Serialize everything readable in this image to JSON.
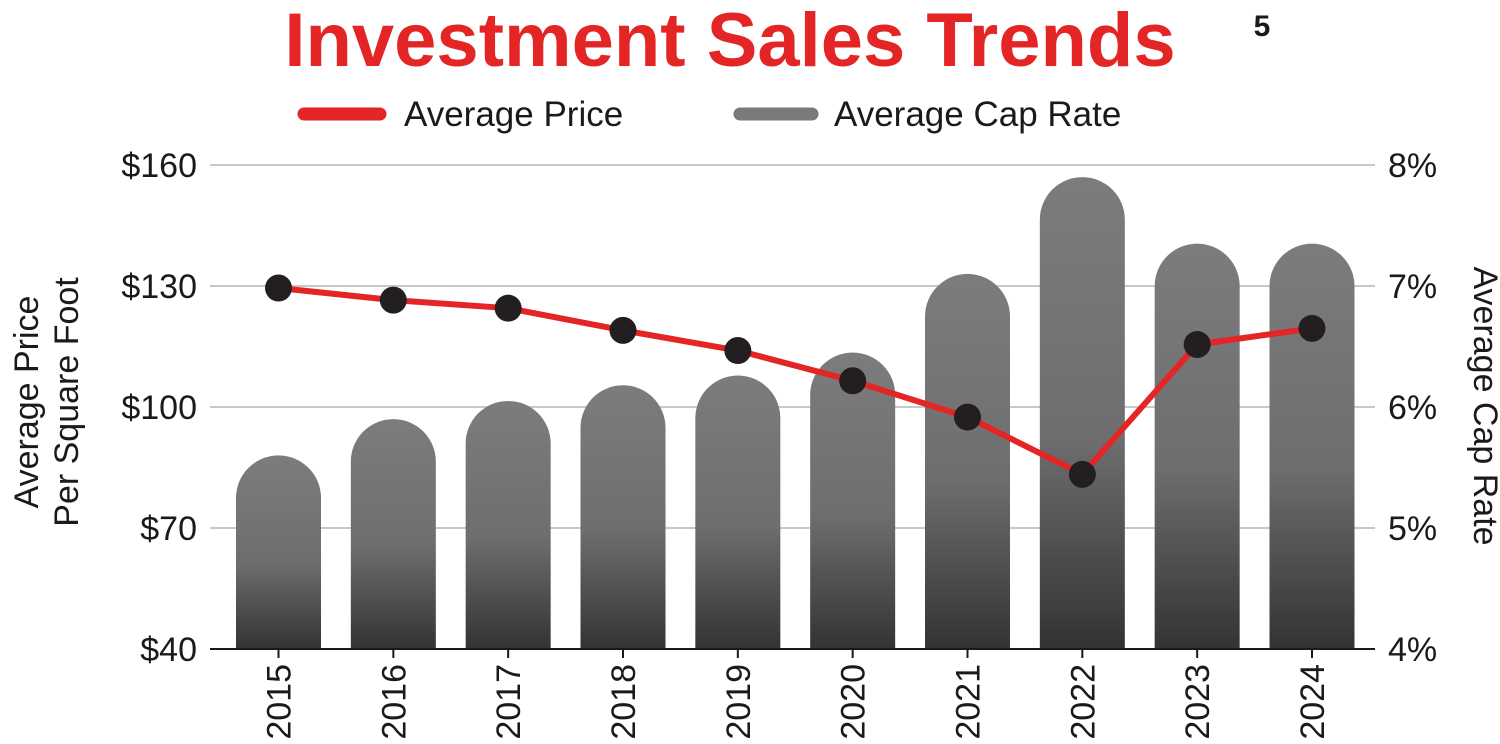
{
  "chart_data": {
    "type": "bar",
    "title": "Investment Sales Trends",
    "title_superscript": "5",
    "categories": [
      "2015",
      "2016",
      "2017",
      "2018",
      "2019",
      "2020",
      "2021",
      "2022",
      "2023",
      "2024"
    ],
    "series": [
      {
        "name": "Average Price",
        "kind": "line",
        "axis": "left",
        "color": "#e32526",
        "values": [
          129.5,
          126.5,
          124.5,
          119,
          114,
          106.5,
          97.5,
          83.3,
          115.5,
          119.5
        ]
      },
      {
        "name": "Average Cap Rate",
        "kind": "bar",
        "axis": "right",
        "color": "#7a7a7c",
        "values": [
          5.6,
          5.9,
          6.05,
          6.18,
          6.26,
          6.45,
          7.1,
          7.9,
          7.35,
          7.35
        ]
      }
    ],
    "y_left": {
      "label_lines": [
        "Average Price",
        "Per Square Foot"
      ],
      "range": [
        40,
        160
      ],
      "ticks": [
        "$40",
        "$70",
        "$100",
        "$130",
        "$160"
      ]
    },
    "y_right": {
      "label": "Average Cap Rate",
      "range": [
        4,
        8
      ],
      "ticks": [
        "4%",
        "5%",
        "6%",
        "7%",
        "8%"
      ]
    },
    "grid": true,
    "legend": "top-center",
    "colors": {
      "title": "#e32526",
      "line": "#e32526",
      "marker": "#231f20",
      "bar_top": "#7c7c7e",
      "bar_bottom": "#333333",
      "grid": "#c8c8c8",
      "text": "#1a1a1a"
    }
  }
}
